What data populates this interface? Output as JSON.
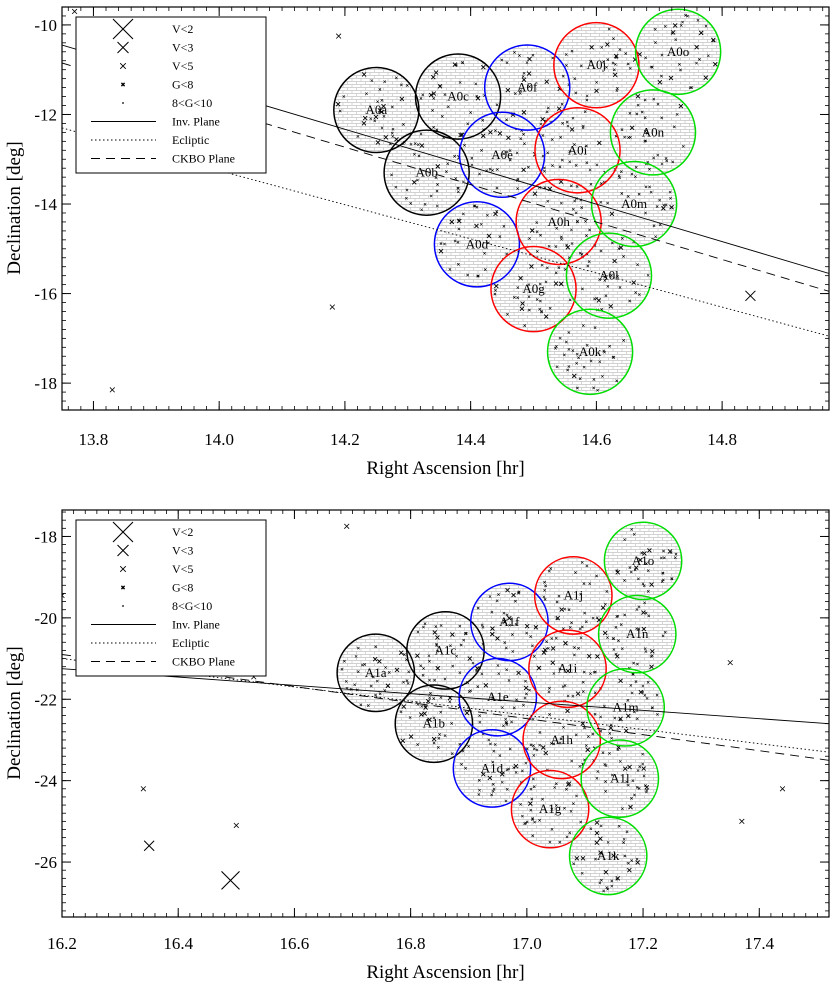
{
  "chart_data": [
    {
      "type": "scatter",
      "xlabel": "Right Ascension [hr]",
      "ylabel": "Declination [deg]",
      "xlim": [
        13.75,
        14.97
      ],
      "ylim": [
        -18.6,
        -9.6
      ],
      "xticks": [
        "13.8",
        "14.0",
        "14.2",
        "14.4",
        "14.6",
        "14.8"
      ],
      "yticks": [
        "-10",
        "-12",
        "-14",
        "-16",
        "-18"
      ],
      "legend": {
        "placement": "top-left",
        "entries": [
          "V<2",
          "V<3",
          "V<5",
          "G<8",
          "8<G<10",
          "Inv. Plane",
          "Ecliptic",
          "CKBO Plane"
        ]
      },
      "lines": [
        {
          "name": "Inv. Plane",
          "style": "solid",
          "x": [
            13.75,
            14.97
          ],
          "y": [
            -10.45,
            -15.55
          ]
        },
        {
          "name": "Ecliptic",
          "style": "dotted",
          "x": [
            13.75,
            14.97
          ],
          "y": [
            -12.3,
            -16.95
          ]
        },
        {
          "name": "CKBO Plane",
          "style": "dashed",
          "x": [
            13.75,
            14.97
          ],
          "y": [
            -10.85,
            -15.95
          ]
        }
      ],
      "fields": [
        {
          "label": "A0a",
          "ra": 14.25,
          "dec": -11.9,
          "color": "#000000"
        },
        {
          "label": "A0b",
          "ra": 14.33,
          "dec": -13.3,
          "color": "#000000"
        },
        {
          "label": "A0c",
          "ra": 14.38,
          "dec": -11.6,
          "color": "#000000"
        },
        {
          "label": "A0d",
          "ra": 14.41,
          "dec": -14.9,
          "color": "#0000ff"
        },
        {
          "label": "A0e",
          "ra": 14.45,
          "dec": -12.9,
          "color": "#0000ff"
        },
        {
          "label": "A0f",
          "ra": 14.49,
          "dec": -11.4,
          "color": "#0000ff"
        },
        {
          "label": "A0g",
          "ra": 14.5,
          "dec": -15.9,
          "color": "#ff0000"
        },
        {
          "label": "A0h",
          "ra": 14.54,
          "dec": -14.4,
          "color": "#ff0000"
        },
        {
          "label": "A0i",
          "ra": 14.57,
          "dec": -12.8,
          "color": "#ff0000"
        },
        {
          "label": "A0j",
          "ra": 14.6,
          "dec": -10.9,
          "color": "#ff0000"
        },
        {
          "label": "A0k",
          "ra": 14.59,
          "dec": -17.3,
          "color": "#00dd00"
        },
        {
          "label": "A0l",
          "ra": 14.62,
          "dec": -15.6,
          "color": "#00dd00"
        },
        {
          "label": "A0m",
          "ra": 14.66,
          "dec": -14.0,
          "color": "#00dd00"
        },
        {
          "label": "A0n",
          "ra": 14.69,
          "dec": -12.4,
          "color": "#00dd00"
        },
        {
          "label": "A0o",
          "ra": 14.73,
          "dec": -10.6,
          "color": "#00dd00"
        }
      ],
      "isolated_stars": [
        {
          "ra": 14.845,
          "dec": -16.05,
          "class": "V<3"
        },
        {
          "ra": 14.18,
          "dec": -16.3,
          "class": "V<5"
        },
        {
          "ra": 13.83,
          "dec": -18.15,
          "class": "V<5"
        },
        {
          "ra": 14.19,
          "dec": -10.25,
          "class": "V<5"
        },
        {
          "ra": 13.77,
          "dec": -9.7,
          "class": "V<5"
        },
        {
          "ra": 14.0,
          "dec": -10.5,
          "class": "V<5"
        }
      ]
    },
    {
      "type": "scatter",
      "xlabel": "Right Ascension [hr]",
      "ylabel": "Declination [deg]",
      "xlim": [
        16.2,
        17.52
      ],
      "ylim": [
        -27.35,
        -17.35
      ],
      "xticks": [
        "16.2",
        "16.4",
        "16.6",
        "16.8",
        "17.0",
        "17.2",
        "17.4"
      ],
      "yticks": [
        "-18",
        "-20",
        "-22",
        "-24",
        "-26"
      ],
      "legend": {
        "placement": "top-left",
        "entries": [
          "V<2",
          "V<3",
          "V<5",
          "G<8",
          "8<G<10",
          "Inv. Plane",
          "Ecliptic",
          "CKBO Plane"
        ]
      },
      "lines": [
        {
          "name": "Inv. Plane",
          "style": "solid",
          "x": [
            16.2,
            17.52
          ],
          "y": [
            -21.25,
            -22.6
          ]
        },
        {
          "name": "Ecliptic",
          "style": "dotted",
          "x": [
            16.2,
            17.52
          ],
          "y": [
            -21.0,
            -23.3
          ]
        },
        {
          "name": "CKBO Plane",
          "style": "dashed",
          "x": [
            16.2,
            17.52
          ],
          "y": [
            -20.9,
            -23.5
          ]
        }
      ],
      "fields": [
        {
          "label": "A1a",
          "ra": 16.74,
          "dec": -21.35,
          "color": "#000000"
        },
        {
          "label": "A1b",
          "ra": 16.84,
          "dec": -22.6,
          "color": "#000000"
        },
        {
          "label": "A1c",
          "ra": 16.86,
          "dec": -20.8,
          "color": "#000000"
        },
        {
          "label": "A1d",
          "ra": 16.94,
          "dec": -23.7,
          "color": "#0000ff"
        },
        {
          "label": "A1e",
          "ra": 16.95,
          "dec": -21.95,
          "color": "#0000ff"
        },
        {
          "label": "A1f",
          "ra": 16.97,
          "dec": -20.1,
          "color": "#0000ff"
        },
        {
          "label": "A1g",
          "ra": 17.04,
          "dec": -24.7,
          "color": "#ff0000"
        },
        {
          "label": "A1h",
          "ra": 17.06,
          "dec": -23.0,
          "color": "#ff0000"
        },
        {
          "label": "A1i",
          "ra": 17.07,
          "dec": -21.25,
          "color": "#ff0000"
        },
        {
          "label": "A1j",
          "ra": 17.08,
          "dec": -19.45,
          "color": "#ff0000"
        },
        {
          "label": "A1k",
          "ra": 17.14,
          "dec": -25.85,
          "color": "#00dd00"
        },
        {
          "label": "A1l",
          "ra": 17.16,
          "dec": -23.95,
          "color": "#00dd00"
        },
        {
          "label": "A1m",
          "ra": 17.17,
          "dec": -22.2,
          "color": "#00dd00"
        },
        {
          "label": "A1n",
          "ra": 17.19,
          "dec": -20.4,
          "color": "#00dd00"
        },
        {
          "label": "A1o",
          "ra": 17.2,
          "dec": -18.6,
          "color": "#00dd00"
        }
      ],
      "isolated_stars": [
        {
          "ra": 16.49,
          "dec": -26.45,
          "class": "V<2"
        },
        {
          "ra": 16.35,
          "dec": -25.6,
          "class": "V<3"
        },
        {
          "ra": 16.34,
          "dec": -24.2,
          "class": "V<5"
        },
        {
          "ra": 16.5,
          "dec": -25.1,
          "class": "V<5"
        },
        {
          "ra": 16.69,
          "dec": -17.75,
          "class": "V<5"
        },
        {
          "ra": 16.53,
          "dec": -21.45,
          "class": "V<5"
        },
        {
          "ra": 17.35,
          "dec": -21.1,
          "class": "V<5"
        },
        {
          "ra": 17.37,
          "dec": -25.0,
          "class": "V<5"
        },
        {
          "ra": 17.44,
          "dec": -24.2,
          "class": "V<5"
        },
        {
          "ra": 16.2,
          "dec": -19.45,
          "class": "V<5"
        }
      ]
    }
  ]
}
